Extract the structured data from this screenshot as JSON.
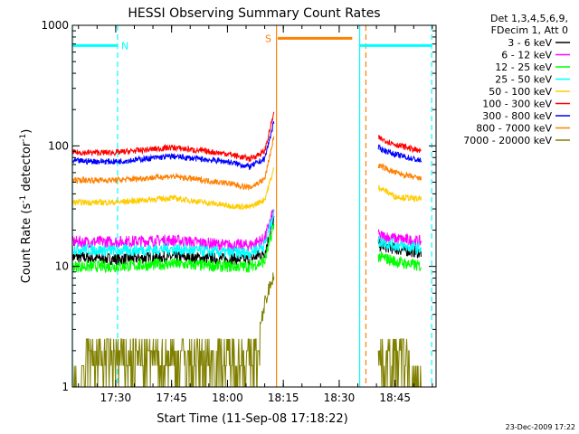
{
  "chart_data": {
    "type": "line",
    "title": "HESSI Observing Summary Count Rates",
    "xlabel": "Start Time (11-Sep-08 17:18:22)",
    "ylabel": "Count Rate (s-1 detector-1)",
    "ylabel_parts": {
      "main": "Count Rate (s",
      "sup1": "-1",
      "mid": " detector",
      "sup2": "-1",
      "end": ")"
    },
    "yscale": "log",
    "xlim": [
      "17:18:22",
      "18:56:00"
    ],
    "ylim": [
      1,
      1000
    ],
    "x_ticks": [
      "17:30",
      "17:45",
      "18:00",
      "18:15",
      "18:30",
      "18:45"
    ],
    "y_ticks": [
      {
        "value": 1,
        "label": "1"
      },
      {
        "value": 10,
        "label": "10"
      },
      {
        "value": 100,
        "label": "100"
      },
      {
        "value": 1000,
        "label": "1000"
      }
    ],
    "legend_header": [
      "Det 1,3,4,5,6,9,",
      "FDecim 1, Att 0"
    ],
    "legend_placement": "outside-right",
    "series": [
      {
        "name": "3 - 6 keV",
        "color": "#000000",
        "x": [
          "17:18:22",
          "17:30",
          "17:45",
          "18:00",
          "18:06",
          "18:10",
          "18:12:30",
          "18:41",
          "18:45",
          "18:52"
        ],
        "y": [
          12,
          11.5,
          12,
          11.5,
          11.5,
          13,
          25,
          15,
          14,
          13
        ]
      },
      {
        "name": "6 - 12 keV",
        "color": "#ff00ff",
        "x": [
          "17:18:22",
          "17:30",
          "17:45",
          "18:00",
          "18:06",
          "18:10",
          "18:12:30",
          "18:41",
          "18:45",
          "18:52"
        ],
        "y": [
          16,
          16,
          16.5,
          15,
          15,
          17,
          30,
          18,
          17,
          16
        ]
      },
      {
        "name": "12 - 25 keV",
        "color": "#00ff00",
        "x": [
          "17:18:22",
          "17:30",
          "17:45",
          "18:00",
          "18:06",
          "18:10",
          "18:12:30",
          "18:41",
          "18:45",
          "18:52"
        ],
        "y": [
          10,
          10,
          10.5,
          10,
          10,
          11,
          22,
          12,
          11,
          10
        ]
      },
      {
        "name": "25 - 50 keV",
        "color": "#00ffff",
        "x": [
          "17:18:22",
          "17:30",
          "17:45",
          "18:00",
          "18:06",
          "18:10",
          "18:12:30",
          "18:41",
          "18:45",
          "18:52"
        ],
        "y": [
          14,
          13.5,
          14,
          13,
          13,
          15,
          28,
          16,
          15,
          14
        ]
      },
      {
        "name": "50 - 100 keV",
        "color": "#ffcc00",
        "x": [
          "17:18:22",
          "17:30",
          "17:45",
          "18:00",
          "18:06",
          "18:10",
          "18:12:30",
          "18:41",
          "18:45",
          "18:52"
        ],
        "y": [
          34,
          34,
          37,
          32,
          31,
          36,
          65,
          45,
          38,
          36
        ]
      },
      {
        "name": "100 - 300 keV",
        "color": "#ff0000",
        "x": [
          "17:18:22",
          "17:30",
          "17:45",
          "18:00",
          "18:06",
          "18:10",
          "18:12:30",
          "18:41",
          "18:45",
          "18:52"
        ],
        "y": [
          88,
          88,
          97,
          86,
          78,
          90,
          190,
          115,
          103,
          90
        ]
      },
      {
        "name": "300 - 800 keV",
        "color": "#0000ff",
        "x": [
          "17:18:22",
          "17:30",
          "17:45",
          "18:00",
          "18:06",
          "18:10",
          "18:12:30",
          "18:41",
          "18:45",
          "18:52"
        ],
        "y": [
          75,
          74,
          82,
          74,
          67,
          78,
          160,
          95,
          85,
          75
        ]
      },
      {
        "name": "800 - 7000 keV",
        "color": "#ff8000",
        "x": [
          "17:18:22",
          "17:30",
          "17:45",
          "18:00",
          "18:06",
          "18:10",
          "18:12:30",
          "18:41",
          "18:45",
          "18:52"
        ],
        "y": [
          52,
          52,
          56,
          49,
          45,
          53,
          120,
          68,
          60,
          53
        ]
      },
      {
        "name": "7000 - 20000 keV",
        "color": "#808000",
        "x": [
          "17:18:22",
          "17:26",
          "17:32",
          "17:45",
          "18:00",
          "18:07",
          "18:10",
          "18:12:30",
          "18:41",
          "18:45",
          "18:52"
        ],
        "y": [
          1,
          1.5,
          1.7,
          1.8,
          1.5,
          1.5,
          5,
          9,
          2,
          1.5,
          1
        ]
      }
    ],
    "annotations": [
      {
        "label": "N",
        "color": "#00ffff",
        "x_start": "17:18:22",
        "x_end": "17:30:30",
        "y": 680
      },
      {
        "label": "S",
        "color": "#ff8000",
        "x_start": "18:13:30",
        "x_end": "18:33:30",
        "y": 780
      },
      {
        "label": "",
        "color": "#00ffff",
        "x_start": "18:35:30",
        "x_end": "18:54:50",
        "y": 680
      }
    ],
    "markers": [
      {
        "x": "17:18:22",
        "style": "solid",
        "color": "#00ffff"
      },
      {
        "x": "17:30:30",
        "style": "dashed",
        "color": "#00ffff"
      },
      {
        "x": "18:13:10",
        "style": "solid",
        "color": "#ff8000"
      },
      {
        "x": "18:35:30",
        "style": "solid",
        "color": "#00ffff"
      },
      {
        "x": "18:37:10",
        "style": "dashed",
        "color": "#ff8000"
      },
      {
        "x": "18:54:50",
        "style": "dashed",
        "color": "#00ffff"
      }
    ],
    "data_gap": {
      "from": "18:12:30",
      "to": "18:40:30"
    },
    "grid": false
  },
  "footer_date": "23-Dec-2009 17:22"
}
